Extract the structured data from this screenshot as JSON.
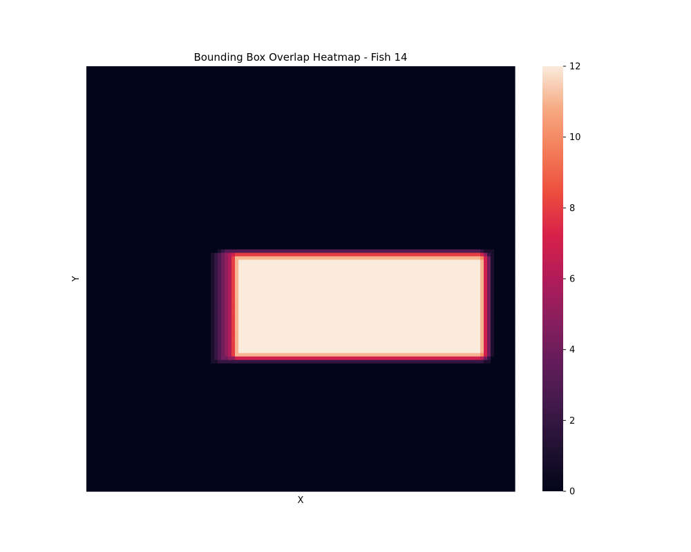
{
  "chart_data": {
    "type": "heatmap",
    "title": "Bounding Box Overlap Heatmap - Fish 14",
    "xlabel": "X",
    "ylabel": "Y",
    "x_tick_labels": [],
    "y_tick_labels": [],
    "grid": false,
    "colormap": "rocket",
    "colorbar": {
      "range": [
        0,
        12
      ],
      "ticks": [
        0,
        2,
        4,
        6,
        8,
        10,
        12
      ],
      "tick_labels": [
        "0",
        "2",
        "4",
        "6",
        "8",
        "10",
        "12"
      ]
    },
    "grid_size": {
      "columns": 124,
      "rows": 123
    },
    "background_value": 0,
    "boxes": [
      {
        "x": [
          36,
          116
        ],
        "y": [
          54,
          85
        ],
        "value": 1
      },
      {
        "x": [
          37,
          115
        ],
        "y": [
          54,
          84
        ],
        "value": 1
      },
      {
        "x": [
          38,
          114
        ],
        "y": [
          53,
          85
        ],
        "value": 1
      },
      {
        "x": [
          39,
          113
        ],
        "y": [
          53,
          84
        ],
        "value": 1
      },
      {
        "x": [
          40,
          117
        ],
        "y": [
          53,
          83
        ],
        "value": 1
      },
      {
        "x": [
          41,
          115
        ],
        "y": [
          54,
          84
        ],
        "value": 1
      },
      {
        "x": [
          42,
          116
        ],
        "y": [
          55,
          83
        ],
        "value": 1
      },
      {
        "x": [
          43,
          114
        ],
        "y": [
          54,
          84
        ],
        "value": 1
      },
      {
        "x": [
          42,
          115
        ],
        "y": [
          54,
          83
        ],
        "value": 1
      },
      {
        "x": [
          43,
          116
        ],
        "y": [
          55,
          84
        ],
        "value": 1
      },
      {
        "x": [
          43,
          114
        ],
        "y": [
          55,
          83
        ],
        "value": 1
      },
      {
        "x": [
          44,
          114
        ],
        "y": [
          56,
          82
        ],
        "value": 1
      }
    ]
  }
}
